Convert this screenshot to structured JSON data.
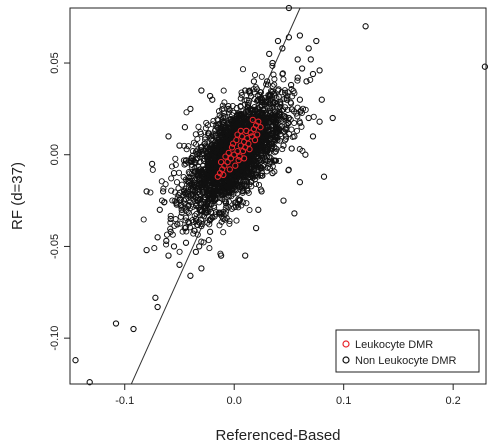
{
  "chart_data": {
    "type": "scatter",
    "xlabel": "Referenced-Based",
    "ylabel": "RF (d=37)",
    "xlim": [
      -0.15,
      0.23
    ],
    "ylim": [
      -0.125,
      0.08
    ],
    "x_ticks": [
      -0.1,
      0.0,
      0.1,
      0.2
    ],
    "x_tick_labels": [
      "-0.1",
      "0.0",
      "0.1",
      "0.2"
    ],
    "y_ticks": [
      -0.1,
      -0.05,
      0.0,
      0.05
    ],
    "y_tick_labels": [
      "-0.10",
      "-0.05",
      "0.00",
      "0.05"
    ],
    "grid": false,
    "legend_position": "bottom-right",
    "reference_line": {
      "slope": 1.33,
      "intercept": 0.0
    },
    "series": [
      {
        "name": "Leukocyte DMR",
        "color": "#e8252b",
        "marker": "open-circle",
        "points": [
          [
            0.0,
            0.0
          ],
          [
            0.003,
            0.002
          ],
          [
            -0.003,
            -0.002
          ],
          [
            0.006,
            0.005
          ],
          [
            -0.006,
            -0.004
          ],
          [
            0.009,
            0.007
          ],
          [
            -0.009,
            -0.006
          ],
          [
            0.012,
            0.009
          ],
          [
            -0.011,
            -0.008
          ],
          [
            0.015,
            0.012
          ],
          [
            -0.013,
            -0.01
          ],
          [
            0.018,
            0.014
          ],
          [
            0.02,
            0.016
          ],
          [
            -0.015,
            -0.012
          ],
          [
            0.004,
            -0.003
          ],
          [
            -0.002,
            0.004
          ],
          [
            0.008,
            0.002
          ],
          [
            -0.005,
            0.001
          ],
          [
            0.01,
            0.004
          ],
          [
            0.002,
            0.008
          ],
          [
            0.013,
            0.006
          ],
          [
            -0.008,
            -0.001
          ],
          [
            0.016,
            0.01
          ],
          [
            0.022,
            0.018
          ],
          [
            0.007,
            0.01
          ],
          [
            0.001,
            -0.006
          ],
          [
            -0.01,
            -0.011
          ],
          [
            0.011,
            0.013
          ],
          [
            0.005,
            -0.001
          ],
          [
            0.014,
            0.003
          ],
          [
            0.019,
            0.008
          ],
          [
            -0.004,
            -0.008
          ],
          [
            0.024,
            0.015
          ],
          [
            0.017,
            0.019
          ],
          [
            -0.012,
            -0.004
          ],
          [
            0.006,
            0.013
          ],
          [
            0.009,
            -0.002
          ],
          [
            -0.001,
            0.006
          ],
          [
            0.021,
            0.011
          ],
          [
            0.003,
            0.011
          ]
        ]
      },
      {
        "name": "Non Leukocyte DMR",
        "color": "#111111",
        "marker": "open-circle",
        "points": [
          [
            0.229,
            0.048
          ],
          [
            0.12,
            0.07
          ],
          [
            0.078,
            0.046
          ],
          [
            0.078,
            0.018
          ],
          [
            0.09,
            0.02
          ],
          [
            0.08,
            0.03
          ],
          [
            0.05,
            0.08
          ],
          [
            0.058,
            0.052
          ],
          [
            0.082,
            -0.012
          ],
          [
            0.055,
            -0.032
          ],
          [
            -0.145,
            -0.112
          ],
          [
            -0.132,
            -0.124
          ],
          [
            -0.108,
            -0.092
          ],
          [
            -0.092,
            -0.095
          ],
          [
            -0.08,
            -0.052
          ],
          [
            -0.072,
            -0.078
          ],
          [
            -0.07,
            -0.083
          ],
          [
            -0.06,
            -0.055
          ],
          [
            -0.055,
            -0.05
          ],
          [
            -0.035,
            -0.053
          ],
          [
            -0.022,
            -0.042
          ],
          [
            -0.012,
            -0.055
          ],
          [
            0.01,
            -0.055
          ],
          [
            0.02,
            -0.04
          ],
          [
            -0.05,
            -0.06
          ],
          [
            -0.058,
            -0.035
          ],
          [
            -0.04,
            -0.066
          ],
          [
            -0.03,
            -0.062
          ],
          [
            0.05,
            0.064
          ],
          [
            0.06,
            0.065
          ],
          [
            0.07,
            0.052
          ],
          [
            0.066,
            0.04
          ],
          [
            0.072,
            0.044
          ],
          [
            0.04,
            0.062
          ],
          [
            0.035,
            0.05
          ],
          [
            0.06,
            0.03
          ],
          [
            0.065,
            0.0
          ],
          [
            0.06,
            -0.015
          ],
          [
            0.045,
            -0.025
          ],
          [
            -0.06,
            0.01
          ],
          [
            -0.055,
            -0.01
          ],
          [
            -0.05,
            0.005
          ],
          [
            -0.045,
            0.015
          ],
          [
            -0.04,
            0.025
          ],
          [
            -0.03,
            0.035
          ],
          [
            -0.02,
            0.03
          ],
          [
            -0.065,
            -0.02
          ],
          [
            -0.068,
            -0.03
          ],
          [
            -0.07,
            -0.045
          ],
          [
            0.03,
            0.04
          ],
          [
            0.04,
            0.035
          ],
          [
            0.05,
            0.02
          ],
          [
            0.055,
            0.01
          ],
          [
            0.045,
            0.005
          ],
          [
            0.035,
            -0.01
          ],
          [
            0.025,
            -0.02
          ],
          [
            -0.025,
            -0.03
          ],
          [
            -0.035,
            -0.035
          ],
          [
            -0.045,
            -0.04
          ],
          [
            0.015,
            0.025
          ],
          [
            0.025,
            0.03
          ],
          [
            -0.01,
            0.02
          ],
          [
            -0.015,
            -0.02
          ],
          [
            0.005,
            -0.025
          ],
          [
            -0.005,
            0.025
          ],
          [
            0.03,
            0.015
          ],
          [
            -0.03,
            -0.015
          ],
          [
            0.042,
            0.028
          ],
          [
            -0.042,
            -0.028
          ],
          [
            0.052,
            0.038
          ],
          [
            -0.052,
            -0.038
          ],
          [
            0.062,
            0.047
          ],
          [
            -0.062,
            -0.047
          ],
          [
            0.01,
            0.035
          ],
          [
            -0.01,
            -0.035
          ],
          [
            0.02,
            -0.005
          ],
          [
            -0.02,
            0.005
          ],
          [
            0.038,
            0.022
          ],
          [
            -0.038,
            -0.022
          ],
          [
            0.028,
            0.008
          ],
          [
            -0.028,
            -0.008
          ],
          [
            0.048,
            0.03
          ],
          [
            -0.048,
            -0.03
          ],
          [
            0.058,
            0.042
          ],
          [
            -0.058,
            -0.042
          ],
          [
            0.032,
            0.055
          ],
          [
            0.044,
            0.058
          ],
          [
            -0.032,
            -0.05
          ],
          [
            -0.044,
            -0.048
          ],
          [
            0.068,
            0.058
          ],
          [
            0.075,
            0.062
          ],
          [
            0.012,
            -0.015
          ],
          [
            -0.012,
            0.015
          ],
          [
            0.022,
            -0.03
          ],
          [
            -0.022,
            0.032
          ],
          [
            0.068,
            0.02
          ],
          [
            0.072,
            0.01
          ],
          [
            -0.075,
            -0.005
          ],
          [
            -0.08,
            -0.02
          ],
          [
            0.018,
            0.04
          ]
        ]
      }
    ]
  },
  "legend": {
    "entries": [
      {
        "label": "Leukocyte DMR",
        "color": "#e8252b"
      },
      {
        "label": "Non Leukocyte DMR",
        "color": "#111111"
      }
    ]
  }
}
